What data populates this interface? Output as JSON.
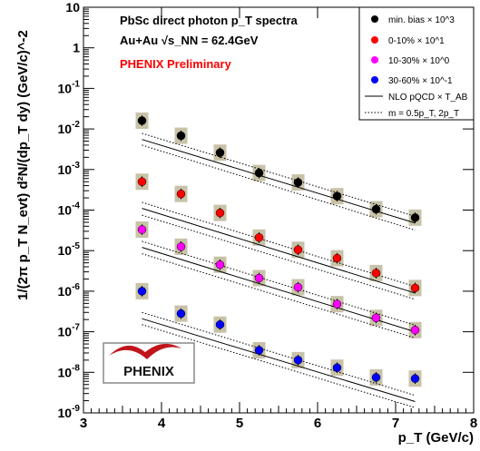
{
  "chart_data": {
    "type": "scatter",
    "title": "PbSc direct photon p_T spectra",
    "subtitle": "Au+Au √s_NN = 62.4GeV",
    "label_preliminary": "PHENIX Preliminary",
    "xlabel": "p_T (GeV/c)",
    "ylabel": "1/(2π p_T N_evt) d²N/(dp_T dy) (GeV/c)^-2",
    "xlim": [
      3,
      8
    ],
    "ylim": [
      1e-09,
      10
    ],
    "yscale": "log",
    "x_ticks": [
      "3",
      "4",
      "5",
      "6",
      "7",
      "8"
    ],
    "y_ticks": [
      "10^-9",
      "10^-8",
      "10^-7",
      "10^-6",
      "10^-5",
      "10^-4",
      "10^-3",
      "10^-2",
      "10^-1",
      "1",
      "10"
    ],
    "grid": false,
    "legend_position": "top-right",
    "x": [
      3.75,
      4.25,
      4.75,
      5.25,
      5.75,
      6.25,
      6.75,
      7.25
    ],
    "series": [
      {
        "name": "min. bias × 10^3",
        "color": "#000000",
        "values": [
          0.016,
          0.0068,
          0.0026,
          0.00082,
          0.00048,
          0.00022,
          0.000105,
          6.5e-05
        ]
      },
      {
        "name": "0-10% × 10^1",
        "color": "#ff0000",
        "values": [
          0.0005,
          0.00025,
          8.5e-05,
          2.1e-05,
          1.05e-05,
          6.5e-06,
          2.8e-06,
          1.2e-06
        ]
      },
      {
        "name": "10-30% × 10^0",
        "color": "#ff00ff",
        "values": [
          3.3e-05,
          1.25e-05,
          4.5e-06,
          2.1e-06,
          1.25e-06,
          4.8e-07,
          2.2e-07,
          1.1e-07
        ]
      },
      {
        "name": "30-60% × 10^-1",
        "color": "#0000ff",
        "values": [
          1e-06,
          2.8e-07,
          1.5e-07,
          3.5e-08,
          2e-08,
          1.3e-08,
          7.5e-09,
          7e-09
        ]
      }
    ],
    "legend_nlo": "NLO pQCD × T_AB",
    "legend_scale": "m = 0.5p_T, 2p_T",
    "nlo_curves": [
      {
        "x": [
          3.75,
          7.25
        ],
        "y_central": [
          0.0055,
          4.8e-05
        ],
        "y_low": [
          0.004,
          3.2e-05
        ],
        "y_high": [
          0.0078,
          7e-05
        ]
      },
      {
        "x": [
          3.75,
          7.25
        ],
        "y_central": [
          0.00011,
          9e-07
        ],
        "y_low": [
          7.5e-05,
          6.3e-07
        ],
        "y_high": [
          0.000155,
          1.3e-06
        ]
      },
      {
        "x": [
          3.75,
          7.25
        ],
        "y_central": [
          1.2e-05,
          1e-07
        ],
        "y_low": [
          8.4e-06,
          7e-08
        ],
        "y_high": [
          1.7e-05,
          1.45e-07
        ]
      },
      {
        "x": [
          3.75,
          7.25
        ],
        "y_central": [
          2.1e-07,
          1.9e-09
        ],
        "y_low": [
          1.5e-07,
          1.35e-09
        ],
        "y_high": [
          3e-07,
          2.7e-09
        ]
      }
    ],
    "logo_text": "PHENIX"
  }
}
